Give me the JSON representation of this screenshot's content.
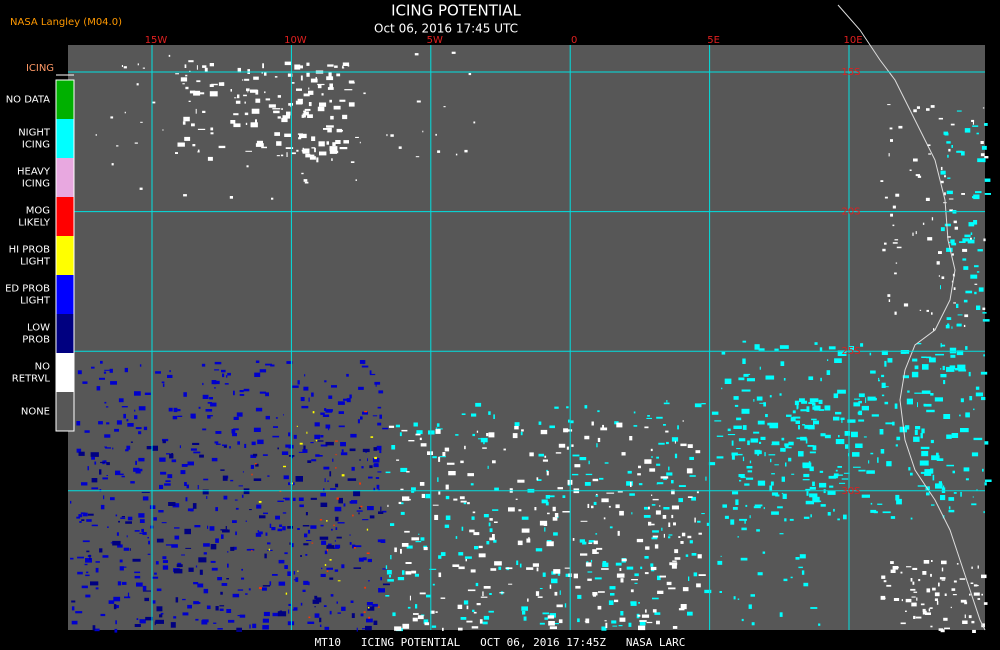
{
  "header": {
    "source": "NASA Langley (M04.0)",
    "title": "ICING POTENTIAL",
    "timestamp": "Oct 06, 2016 17:45 UTC"
  },
  "map": {
    "longitude_labels": [
      "15W",
      "10W",
      "5W",
      "0",
      "5E",
      "10E"
    ],
    "latitude_labels": [
      "15S",
      "20S",
      "25S",
      "30S"
    ]
  },
  "legend": {
    "title": "ICING",
    "items": [
      {
        "lines": [
          "NO DATA"
        ],
        "color": "#00b000"
      },
      {
        "lines": [
          "NIGHT",
          "ICING"
        ],
        "color": "#00ffff"
      },
      {
        "lines": [
          "HEAVY",
          "ICING"
        ],
        "color": "#e8a8e0"
      },
      {
        "lines": [
          "MOG",
          "LIKELY"
        ],
        "color": "#ff0000"
      },
      {
        "lines": [
          "HI PROB",
          "LIGHT"
        ],
        "color": "#ffff00"
      },
      {
        "lines": [
          "ED PROB",
          "LIGHT"
        ],
        "color": "#0000ff"
      },
      {
        "lines": [
          "LOW",
          "PROB"
        ],
        "color": "#000080"
      },
      {
        "lines": [
          "NO",
          "RETRVL"
        ],
        "color": "#ffffff"
      },
      {
        "lines": [
          "NONE"
        ],
        "color": "#575757"
      }
    ]
  },
  "footer": {
    "caption": "MT10   ICING POTENTIAL   OCT 06, 2016 17:45Z   NASA LARC"
  }
}
